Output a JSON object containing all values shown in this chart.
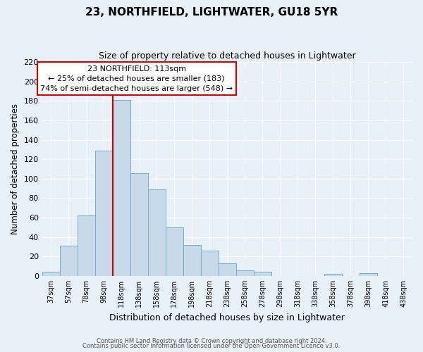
{
  "title": "23, NORTHFIELD, LIGHTWATER, GU18 5YR",
  "subtitle": "Size of property relative to detached houses in Lightwater",
  "xlabel": "Distribution of detached houses by size in Lightwater",
  "ylabel": "Number of detached properties",
  "bar_labels": [
    "37sqm",
    "57sqm",
    "78sqm",
    "98sqm",
    "118sqm",
    "138sqm",
    "158sqm",
    "178sqm",
    "198sqm",
    "218sqm",
    "238sqm",
    "258sqm",
    "278sqm",
    "298sqm",
    "318sqm",
    "338sqm",
    "358sqm",
    "378sqm",
    "398sqm",
    "418sqm",
    "438sqm"
  ],
  "bar_heights": [
    4,
    31,
    62,
    129,
    181,
    106,
    89,
    50,
    32,
    26,
    13,
    6,
    4,
    0,
    0,
    0,
    2,
    0,
    3,
    0,
    0
  ],
  "bar_color": "#c8daea",
  "bar_edge_color": "#7aaec8",
  "background_color": "#e8f0f8",
  "vline_x_index": 4,
  "vline_color": "#cc0000",
  "annotation_title": "23 NORTHFIELD: 113sqm",
  "annotation_line1": "← 25% of detached houses are smaller (183)",
  "annotation_line2": "74% of semi-detached houses are larger (548) →",
  "annotation_box_color": "#cc0000",
  "ylim": [
    0,
    220
  ],
  "yticks": [
    0,
    20,
    40,
    60,
    80,
    100,
    120,
    140,
    160,
    180,
    200,
    220
  ],
  "footer1": "Contains HM Land Registry data © Crown copyright and database right 2024.",
  "footer2": "Contains public sector information licensed under the Open Government Licence v3.0.",
  "figsize": [
    6.0,
    5.0
  ],
  "dpi": 100
}
